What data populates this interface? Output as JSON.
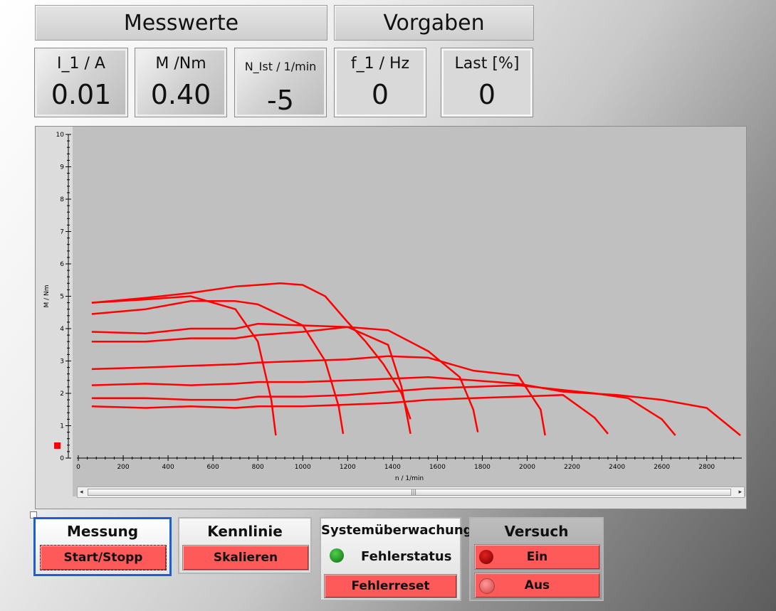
{
  "headers": {
    "measured": "Messwerte",
    "targets": "Vorgaben"
  },
  "tiles": [
    {
      "label": "I_1 / A",
      "value": "0.01"
    },
    {
      "label": "M /Nm",
      "value": "0.40"
    },
    {
      "label": "N_Ist / 1/min",
      "value": "-5"
    },
    {
      "label": "f_1 / Hz",
      "value": "0"
    },
    {
      "label": "Last [%]",
      "value": "0"
    }
  ],
  "chart_data": {
    "type": "line",
    "xlabel": "n / 1/min",
    "ylabel": "M / Nm",
    "xlim": [
      0,
      2950
    ],
    "ylim": [
      0,
      10
    ],
    "xticks": [
      "0",
      "200",
      "400",
      "600",
      "800",
      "1000",
      "1200",
      "1400",
      "1600",
      "1800",
      "2000",
      "2200",
      "2400",
      "2600",
      "2800"
    ],
    "yticks": [
      "0",
      "1",
      "2",
      "3",
      "4",
      "5",
      "6",
      "7",
      "8",
      "9",
      "10"
    ],
    "grid": false,
    "line_color": "#ff0000",
    "series": [
      {
        "x": [
          60,
          300,
          500,
          700,
          800,
          1000,
          1200,
          1380,
          1560,
          1760,
          1960,
          2160,
          2300,
          2360
        ],
        "y": [
          1.6,
          1.55,
          1.6,
          1.55,
          1.6,
          1.6,
          1.65,
          1.7,
          1.8,
          1.85,
          1.9,
          1.95,
          1.25,
          0.75
        ]
      },
      {
        "x": [
          60,
          300,
          500,
          700,
          800,
          1000,
          1200,
          1380,
          1560,
          1760,
          1960,
          2160,
          2300,
          2450,
          2600,
          2660
        ],
        "y": [
          1.85,
          1.85,
          1.8,
          1.8,
          1.9,
          1.9,
          1.95,
          2.05,
          2.15,
          2.2,
          2.25,
          2.1,
          2.0,
          1.85,
          1.2,
          0.7
        ]
      },
      {
        "x": [
          60,
          300,
          500,
          700,
          800,
          1000,
          1200,
          1380,
          1560,
          1760,
          1960,
          2160,
          2400,
          2600,
          2800,
          2950
        ],
        "y": [
          2.25,
          2.3,
          2.25,
          2.3,
          2.35,
          2.35,
          2.4,
          2.45,
          2.5,
          2.4,
          2.3,
          2.05,
          1.95,
          1.8,
          1.55,
          0.7
        ]
      },
      {
        "x": [
          60,
          300,
          500,
          700,
          800,
          1000,
          1200,
          1380,
          1560,
          1760,
          1960,
          2060,
          2080
        ],
        "y": [
          2.75,
          2.8,
          2.85,
          2.9,
          2.95,
          3.0,
          3.05,
          3.15,
          3.1,
          2.7,
          2.55,
          1.5,
          0.7
        ]
      },
      {
        "x": [
          60,
          300,
          500,
          700,
          800,
          1000,
          1200,
          1380,
          1560,
          1700,
          1760,
          1780
        ],
        "y": [
          3.6,
          3.6,
          3.7,
          3.7,
          3.8,
          3.9,
          4.05,
          3.95,
          3.3,
          2.5,
          1.5,
          0.8
        ]
      },
      {
        "x": [
          60,
          300,
          500,
          700,
          800,
          1000,
          1200,
          1380,
          1440,
          1480
        ],
        "y": [
          3.9,
          3.85,
          4.0,
          4.0,
          4.15,
          4.1,
          4.05,
          3.5,
          2.2,
          0.75
        ]
      },
      {
        "x": [
          60,
          300,
          500,
          700,
          800,
          1000,
          1100,
          1160,
          1180
        ],
        "y": [
          4.45,
          4.6,
          4.85,
          4.85,
          4.75,
          4.1,
          3.0,
          1.6,
          0.75
        ]
      },
      {
        "x": [
          60,
          300,
          500,
          700,
          800,
          860,
          880
        ],
        "y": [
          4.8,
          4.9,
          5.0,
          4.6,
          3.6,
          1.8,
          0.7
        ]
      },
      {
        "x": [
          60,
          300,
          500,
          700,
          800,
          900,
          1000,
          1100,
          1200,
          1280,
          1360,
          1440,
          1480
        ],
        "y": [
          4.8,
          4.95,
          5.1,
          5.3,
          5.35,
          5.4,
          5.35,
          5.0,
          4.2,
          3.6,
          2.9,
          2.0,
          1.2
        ]
      }
    ]
  },
  "groups": {
    "measurement": {
      "title": "Messung",
      "button": "Start/Stopp"
    },
    "curve": {
      "title": "Kennlinie",
      "button": "Skalieren"
    },
    "monitor": {
      "title": "Systemüberwachung",
      "status": "Fehlerstatus",
      "button": "Fehlerreset",
      "led_color": "#1a9a1a"
    },
    "trial": {
      "title": "Versuch",
      "on": "Ein",
      "off": "Aus",
      "on_led": "#cc0000",
      "off_led": "#ff6a6a"
    }
  },
  "scrollbar": {
    "left_arrow": "◂",
    "right_arrow": "▸",
    "grip": "|||"
  }
}
